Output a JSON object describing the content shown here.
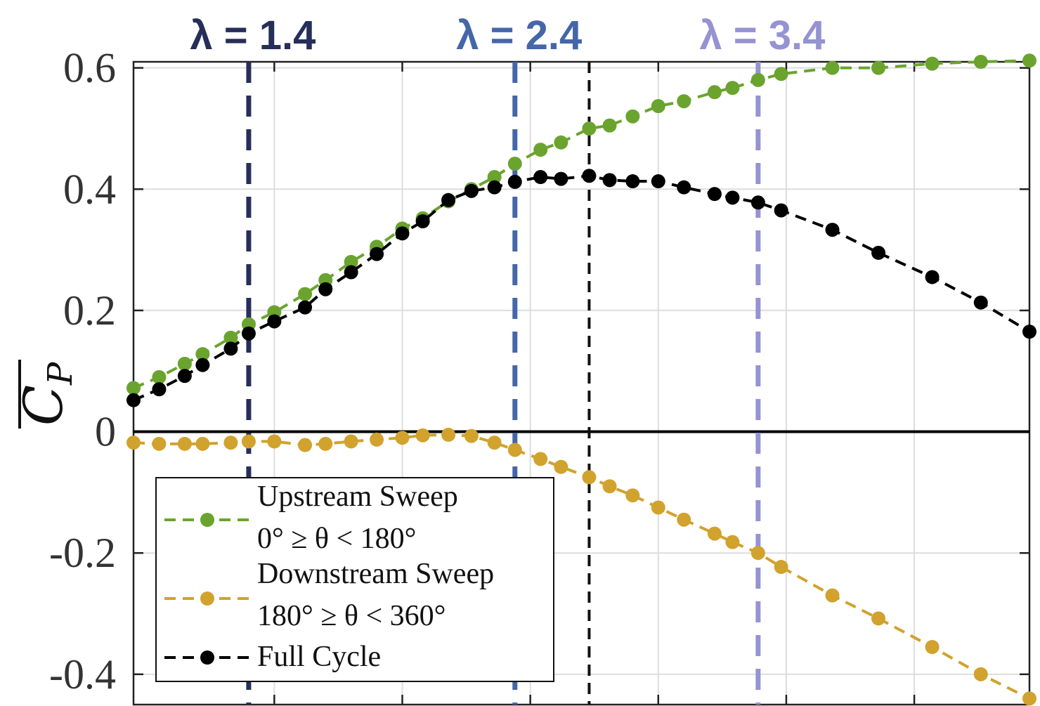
{
  "chart_data": {
    "type": "line",
    "ylabel": "C_P",
    "ylim": [
      -0.45,
      0.61
    ],
    "xlim": [
      1.05,
      4.55
    ],
    "yticks": [
      {
        "value": 0.6,
        "label": "0.6"
      },
      {
        "value": 0.4,
        "label": "0.4"
      },
      {
        "value": 0.2,
        "label": "0.2"
      },
      {
        "value": 0,
        "label": "0"
      },
      {
        "value": -0.2,
        "label": "-0.2"
      },
      {
        "value": -0.4,
        "label": "-0.4"
      }
    ],
    "xgrid": [
      1.6,
      2.1,
      2.6,
      3.1,
      3.6,
      4.1
    ],
    "grid": true,
    "zero_line": true,
    "vertical_lines": [
      {
        "x": 1.5,
        "label": "λ = 1.4",
        "color": "#262f5a"
      },
      {
        "x": 2.54,
        "label": "λ = 2.4",
        "color": "#4566a8"
      },
      {
        "x": 3.49,
        "label": "λ = 3.4",
        "color": "#9593d2"
      },
      {
        "x": 2.83,
        "label": "",
        "color": "#111111"
      }
    ],
    "series": [
      {
        "name": "Upstream Sweep",
        "legend_sub": "0°  ≥  θ  <  180°",
        "color": "#6aa42f",
        "x": [
          1.05,
          1.15,
          1.25,
          1.32,
          1.43,
          1.5,
          1.6,
          1.72,
          1.8,
          1.9,
          2.0,
          2.1,
          2.18,
          2.28,
          2.37,
          2.46,
          2.54,
          2.64,
          2.72,
          2.83,
          2.91,
          3.0,
          3.1,
          3.2,
          3.32,
          3.39,
          3.49,
          3.58,
          3.78,
          3.96,
          4.17,
          4.36,
          4.55
        ],
        "y": [
          0.072,
          0.09,
          0.112,
          0.128,
          0.155,
          0.177,
          0.197,
          0.227,
          0.25,
          0.28,
          0.305,
          0.335,
          0.352,
          0.38,
          0.4,
          0.42,
          0.442,
          0.465,
          0.477,
          0.5,
          0.505,
          0.52,
          0.537,
          0.545,
          0.56,
          0.567,
          0.58,
          0.59,
          0.6,
          0.6,
          0.607,
          0.61,
          0.612
        ]
      },
      {
        "name": "Downstream Sweep",
        "legend_sub": "180°  ≥  θ  <  360°",
        "color": "#d1a22d",
        "x": [
          1.05,
          1.15,
          1.25,
          1.32,
          1.43,
          1.5,
          1.6,
          1.72,
          1.8,
          1.9,
          2.0,
          2.1,
          2.18,
          2.28,
          2.37,
          2.46,
          2.54,
          2.64,
          2.72,
          2.83,
          2.91,
          3.0,
          3.1,
          3.2,
          3.32,
          3.39,
          3.49,
          3.58,
          3.78,
          3.96,
          4.17,
          4.36,
          4.55
        ],
        "y": [
          -0.018,
          -0.02,
          -0.02,
          -0.02,
          -0.018,
          -0.016,
          -0.016,
          -0.022,
          -0.02,
          -0.016,
          -0.013,
          -0.01,
          -0.006,
          -0.005,
          -0.007,
          -0.018,
          -0.03,
          -0.045,
          -0.058,
          -0.075,
          -0.09,
          -0.105,
          -0.125,
          -0.145,
          -0.168,
          -0.182,
          -0.2,
          -0.223,
          -0.27,
          -0.308,
          -0.355,
          -0.4,
          -0.44
        ]
      },
      {
        "name": "Full Cycle",
        "legend_sub": "",
        "color": "#000000",
        "x": [
          1.05,
          1.15,
          1.25,
          1.32,
          1.43,
          1.5,
          1.6,
          1.72,
          1.8,
          1.9,
          2.0,
          2.1,
          2.18,
          2.28,
          2.37,
          2.46,
          2.54,
          2.64,
          2.72,
          2.83,
          2.91,
          3.0,
          3.1,
          3.2,
          3.32,
          3.39,
          3.49,
          3.58,
          3.78,
          3.96,
          4.17,
          4.36,
          4.55
        ],
        "y": [
          0.052,
          0.07,
          0.092,
          0.11,
          0.137,
          0.162,
          0.182,
          0.205,
          0.235,
          0.263,
          0.293,
          0.327,
          0.347,
          0.382,
          0.397,
          0.403,
          0.412,
          0.42,
          0.417,
          0.422,
          0.415,
          0.413,
          0.413,
          0.403,
          0.392,
          0.386,
          0.378,
          0.365,
          0.333,
          0.295,
          0.255,
          0.213,
          0.165
        ]
      }
    ]
  }
}
